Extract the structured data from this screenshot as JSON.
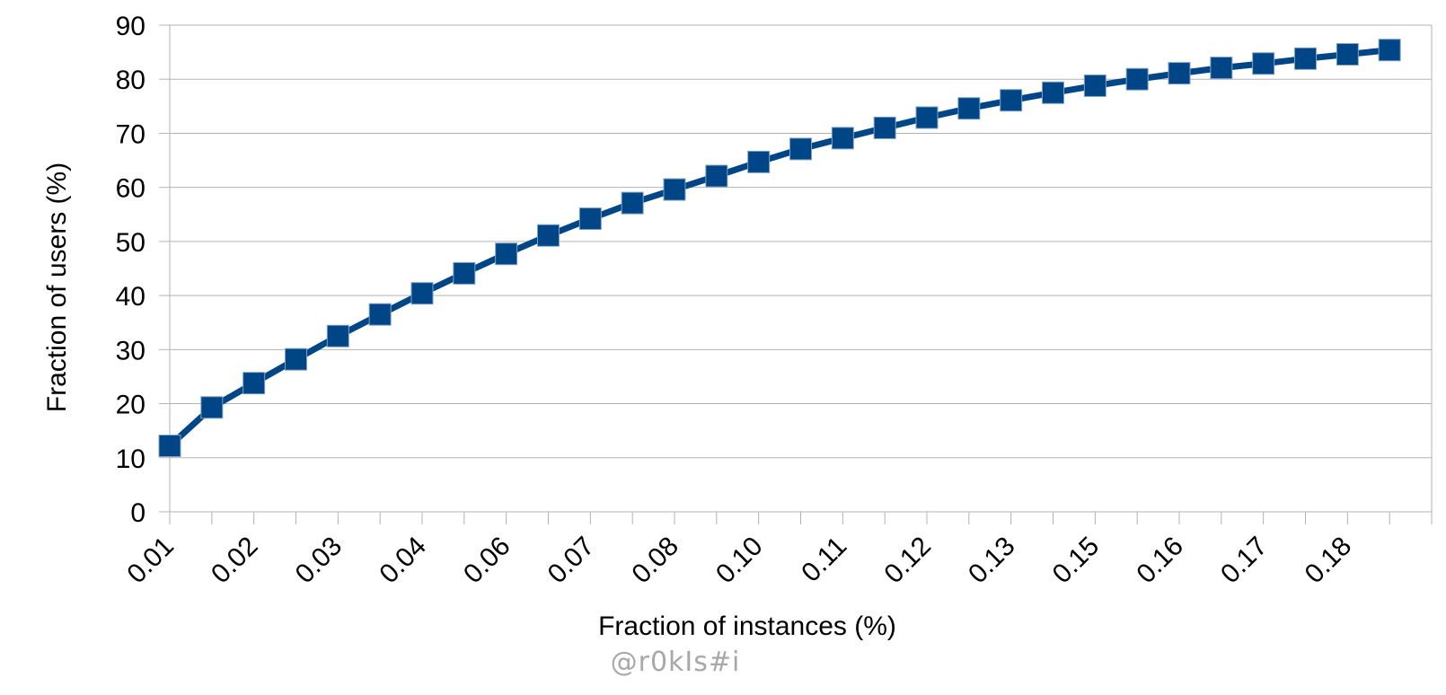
{
  "chart_data": {
    "type": "line",
    "title": "",
    "xlabel": "Fraction of instances (%)",
    "ylabel": "Fraction of users (%)",
    "x_tick_labels": [
      "0.01",
      "0.02",
      "0.03",
      "0.04",
      "0.06",
      "0.07",
      "0.08",
      "0.10",
      "0.11",
      "0.12",
      "0.13",
      "0.15",
      "0.16",
      "0.17",
      "0.18"
    ],
    "y_ticks": [
      0,
      10,
      20,
      30,
      40,
      50,
      60,
      70,
      80,
      90
    ],
    "ylim": [
      0,
      90
    ],
    "grid": true,
    "legend": "none",
    "series": [
      {
        "color": "#004586",
        "marker": "square",
        "values": [
          12.2,
          19.3,
          23.8,
          28.2,
          32.5,
          36.5,
          40.4,
          44.1,
          47.7,
          51.1,
          54.2,
          57.1,
          59.6,
          62.1,
          64.7,
          67.1,
          69.1,
          71.0,
          72.9,
          74.6,
          76.1,
          77.5,
          78.8,
          80.0,
          81.1,
          82.1,
          82.9,
          83.8,
          84.6,
          85.4
        ]
      }
    ]
  },
  "watermark": "@r0kIs#i"
}
